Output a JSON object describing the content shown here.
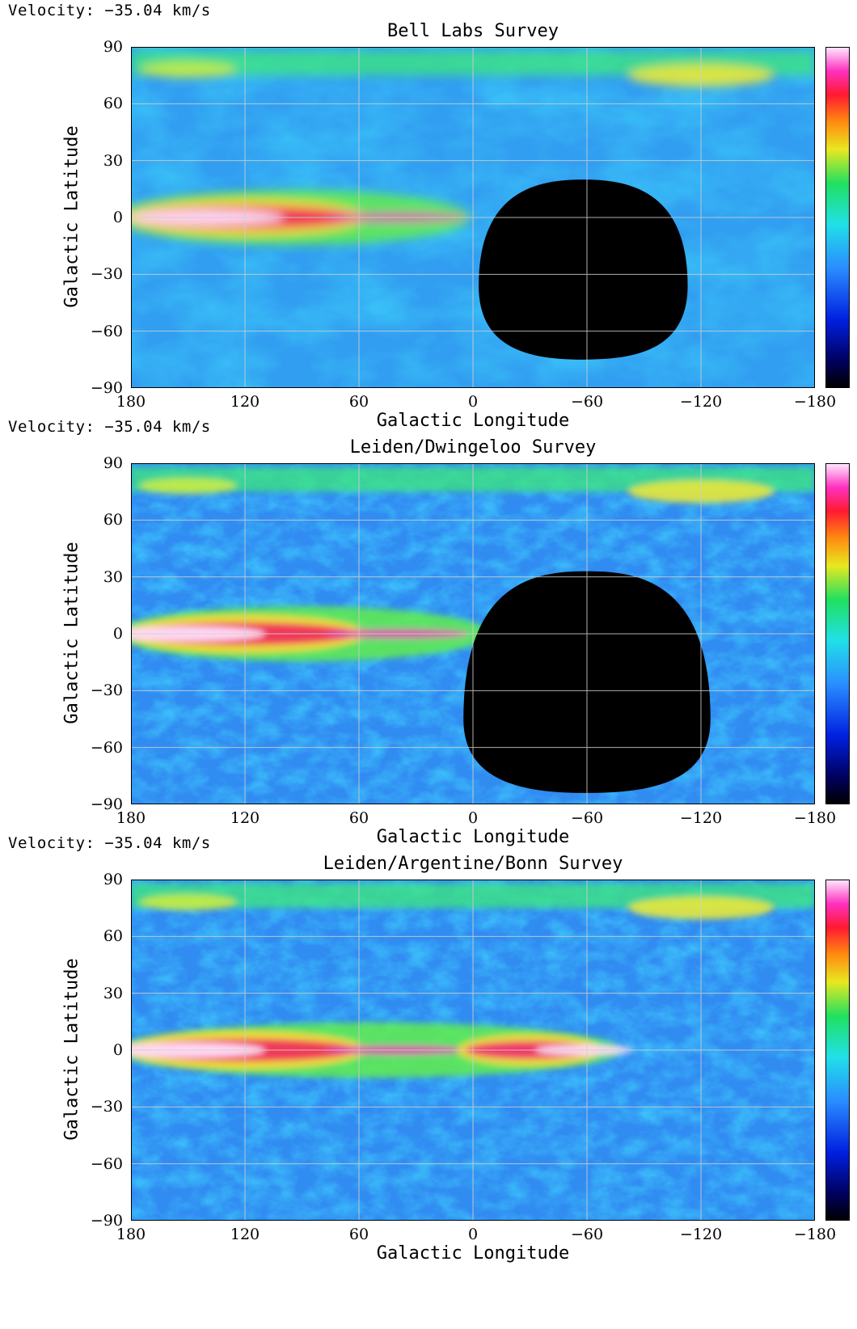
{
  "chart_data": [
    {
      "type": "heatmap",
      "velocity_label": "Velocity: −35.04 km/s",
      "title": "Bell Labs Survey",
      "xlabel": "Galactic Longitude",
      "ylabel": "Galactic Latitude",
      "xlim": [
        180,
        -180
      ],
      "ylim": [
        -90,
        90
      ],
      "xticks": [
        "180",
        "120",
        "60",
        "0",
        "−60",
        "−120",
        "−180"
      ],
      "yticks": [
        "90",
        "60",
        "30",
        "0",
        "−30",
        "−60",
        "−90"
      ],
      "xtick_values": [
        180,
        120,
        60,
        0,
        -60,
        -120,
        -180
      ],
      "ytick_values": [
        90,
        60,
        30,
        0,
        -30,
        -60,
        -90
      ],
      "grid": true,
      "colorbar": "right, black-blue-cyan-green-yellow-red-magenta-white",
      "no_data_region": {
        "center_l": -58,
        "center_b": -36,
        "half_width_l": 55,
        "top_b": 20,
        "bottom_b": -75
      },
      "galactic_plane": {
        "bright_from_l": 180,
        "bright_to_l": 10,
        "peak_l": 140,
        "peak_b": 0
      }
    },
    {
      "type": "heatmap",
      "velocity_label": "Velocity: −35.04 km/s",
      "title": "Leiden/Dwingeloo Survey",
      "xlabel": "Galactic Longitude",
      "ylabel": "Galactic Latitude",
      "xlim": [
        180,
        -180
      ],
      "ylim": [
        -90,
        90
      ],
      "xticks": [
        "180",
        "120",
        "60",
        "0",
        "−60",
        "−120",
        "−180"
      ],
      "yticks": [
        "90",
        "60",
        "30",
        "0",
        "−30",
        "−60",
        "−90"
      ],
      "xtick_values": [
        180,
        120,
        60,
        0,
        -60,
        -120,
        -180
      ],
      "ytick_values": [
        90,
        60,
        30,
        0,
        -30,
        -60,
        -90
      ],
      "grid": true,
      "colorbar": "right, black-blue-cyan-green-yellow-red-magenta-white",
      "no_data_region": {
        "center_l": -60,
        "center_b": -45,
        "half_width_l": 65,
        "top_b": 33,
        "bottom_b": -84
      },
      "galactic_plane": {
        "bright_from_l": 180,
        "bright_to_l": 0,
        "peak_l": 150,
        "peak_b": 0
      }
    },
    {
      "type": "heatmap",
      "velocity_label": "Velocity: −35.04 km/s",
      "title": "Leiden/Argentine/Bonn Survey",
      "xlabel": "Galactic Longitude",
      "ylabel": "Galactic Latitude",
      "xlim": [
        180,
        -180
      ],
      "ylim": [
        -90,
        90
      ],
      "xticks": [
        "180",
        "120",
        "60",
        "0",
        "−60",
        "−120",
        "−180"
      ],
      "yticks": [
        "90",
        "60",
        "30",
        "0",
        "−30",
        "−60",
        "−90"
      ],
      "xtick_values": [
        180,
        120,
        60,
        0,
        -60,
        -120,
        -180
      ],
      "ytick_values": [
        90,
        60,
        30,
        0,
        -30,
        -60,
        -90
      ],
      "grid": true,
      "colorbar": "right, black-blue-cyan-green-yellow-red-magenta-white",
      "no_data_region": null,
      "galactic_plane": {
        "bright_from_l": 180,
        "bright_to_l": -70,
        "peak_l": 150,
        "peak_b": 0,
        "second_peak_l": -50
      }
    }
  ]
}
